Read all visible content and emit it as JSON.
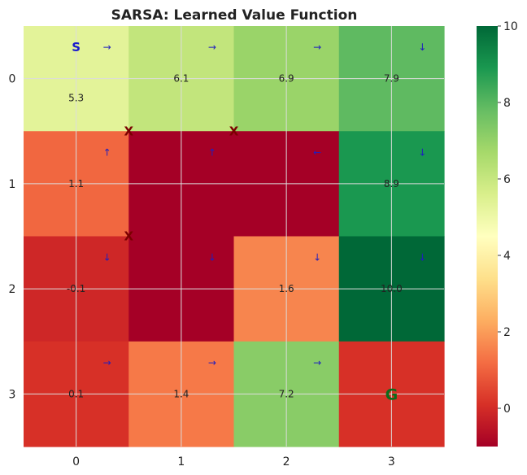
{
  "chart_data": {
    "type": "heatmap",
    "title": "SARSA: Learned Value Function",
    "x_ticks": [
      "0",
      "1",
      "2",
      "3"
    ],
    "y_ticks": [
      "0",
      "1",
      "2",
      "3"
    ],
    "values": [
      [
        5.3,
        6.1,
        6.9,
        7.9
      ],
      [
        1.1,
        -1.0,
        -1.0,
        8.9
      ],
      [
        -0.1,
        -1.0,
        1.6,
        10.0
      ],
      [
        0.1,
        1.4,
        7.2,
        0.1
      ]
    ],
    "labels": [
      [
        "5.3",
        "6.1",
        "6.9",
        "7.9"
      ],
      [
        "1.1",
        "",
        "",
        "8.9"
      ],
      [
        "-0.1",
        "",
        "1.6",
        "10.0"
      ],
      [
        "0.1",
        "1.4",
        "7.2",
        ""
      ]
    ],
    "arrows": [
      [
        "→",
        "→",
        "→",
        "↓"
      ],
      [
        "↑",
        "↑",
        "←",
        "↓"
      ],
      [
        "↓",
        "↓",
        "↓",
        "↓"
      ],
      [
        "→",
        "→",
        "→",
        ""
      ]
    ],
    "markers": [
      [
        "S",
        "",
        "",
        ""
      ],
      [
        "",
        "X",
        "X",
        ""
      ],
      [
        "",
        "X",
        "",
        ""
      ],
      [
        "",
        "",
        "",
        "G"
      ]
    ],
    "colorbar": {
      "min": -1,
      "max": 10,
      "ticks": [
        "0",
        "2",
        "4",
        "6",
        "8",
        "10"
      ],
      "colormap": "RdYlGn"
    },
    "grid": true
  }
}
